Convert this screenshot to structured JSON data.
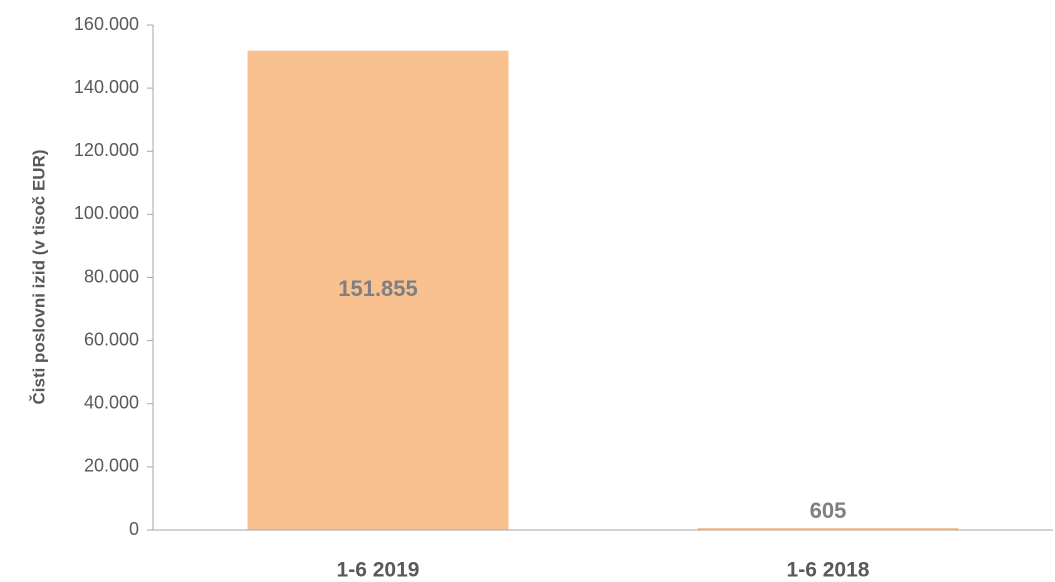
{
  "chart_data": {
    "type": "bar",
    "y_axis_label": "Čisti poslovni izid (v tisoč EUR)",
    "categories": [
      "1-6 2019",
      "1-6 2018"
    ],
    "values": [
      151855,
      605
    ],
    "value_labels": [
      "151.855",
      "605"
    ],
    "color": "#f9c090",
    "ylim": [
      0,
      160000
    ],
    "yticks": [
      0,
      {
        "value": 20000,
        "label": "20.000"
      },
      {
        "value": 40000,
        "label": "40.000"
      },
      {
        "value": 60000,
        "label": "60.000"
      },
      {
        "value": 80000,
        "label": "80.000"
      },
      {
        "value": 100000,
        "label": "100.000"
      },
      {
        "value": 120000,
        "label": "120.000"
      },
      {
        "value": 140000,
        "label": "140.000"
      },
      {
        "value": 160000,
        "label": "160.000"
      }
    ],
    "grid": false
  }
}
